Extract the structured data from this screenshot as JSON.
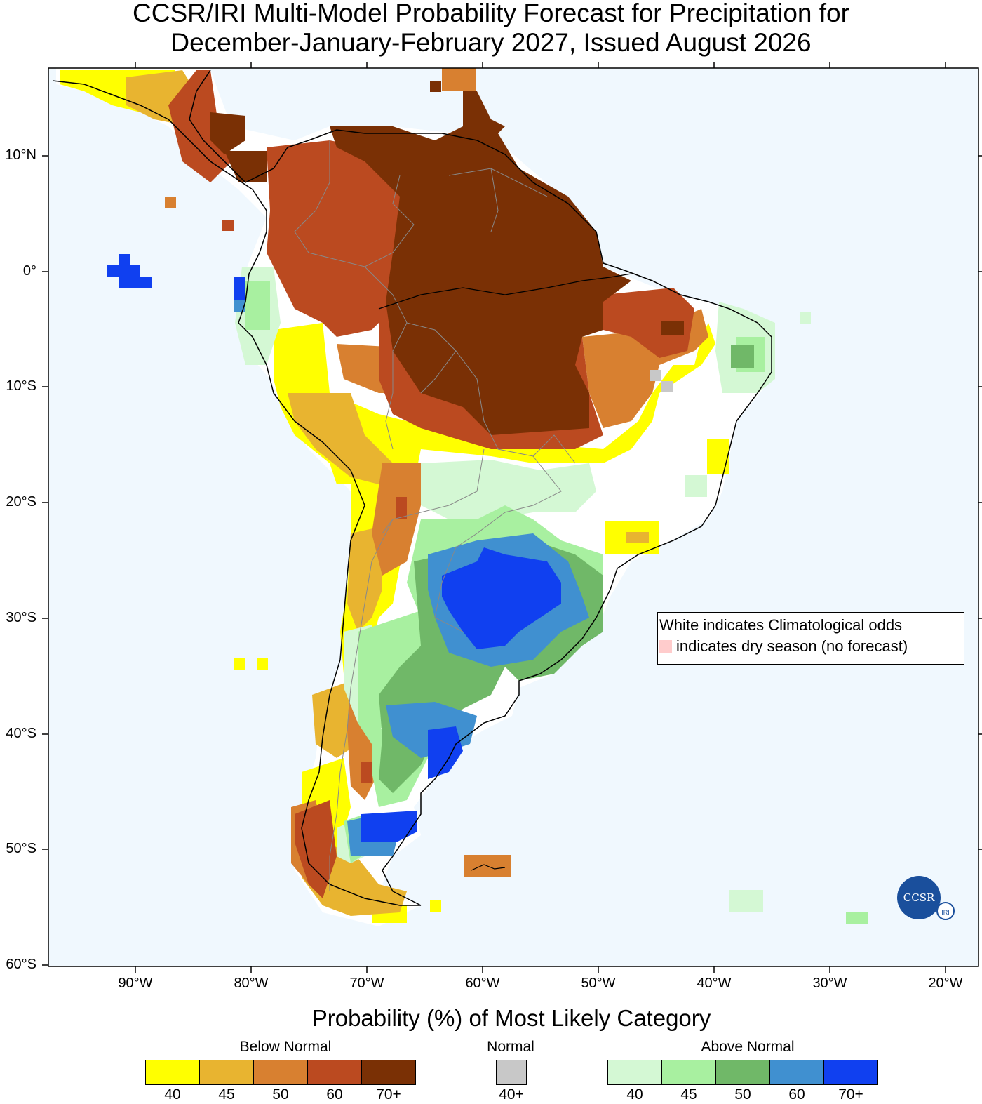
{
  "title": {
    "line1": "CCSR/IRI Multi-Model Probability Forecast for Precipitation for",
    "line2": "December-January-February 2027, Issued August 2026"
  },
  "map": {
    "ocean_color": "#f0f8fe",
    "lat_labels": [
      "10°N",
      "0°",
      "10°S",
      "20°S",
      "30°S",
      "40°S",
      "50°S",
      "60°S"
    ],
    "lon_labels": [
      "90°W",
      "80°W",
      "70°W",
      "60°W",
      "50°W",
      "40°W",
      "30°W",
      "20°W"
    ],
    "lat_values": [
      10,
      0,
      -10,
      -20,
      -30,
      -40,
      -50,
      -60
    ],
    "lon_values": [
      -90,
      -80,
      -70,
      -60,
      -50,
      -40,
      -30,
      -20
    ],
    "extent": {
      "lon_min": -97.5,
      "lon_max": -17.5,
      "lat_min": -60,
      "lat_max": 17.5
    }
  },
  "note": {
    "line1": "White indicates Climatological odds",
    "line2": "indicates dry season (no forecast)",
    "dry_color": "#ffcccc"
  },
  "logo": {
    "main": "CCSR",
    "small": "IRI"
  },
  "legend": {
    "heading": "Probability (%) of Most Likely Category",
    "groups": [
      {
        "name": "Below Normal",
        "colors": [
          "#ffff00",
          "#e8b430",
          "#d88030",
          "#bb4a20",
          "#7a3005"
        ],
        "labels": [
          "40",
          "45",
          "50",
          "60",
          "70+"
        ]
      },
      {
        "name": "Normal",
        "colors": [
          "#c8c8c8"
        ],
        "labels": [
          "40+"
        ]
      },
      {
        "name": "Above Normal",
        "colors": [
          "#d4f8d4",
          "#a8f0a0",
          "#70b868",
          "#4090d0",
          "#1040f0"
        ],
        "labels": [
          "40",
          "45",
          "50",
          "60",
          "70+"
        ]
      }
    ]
  }
}
